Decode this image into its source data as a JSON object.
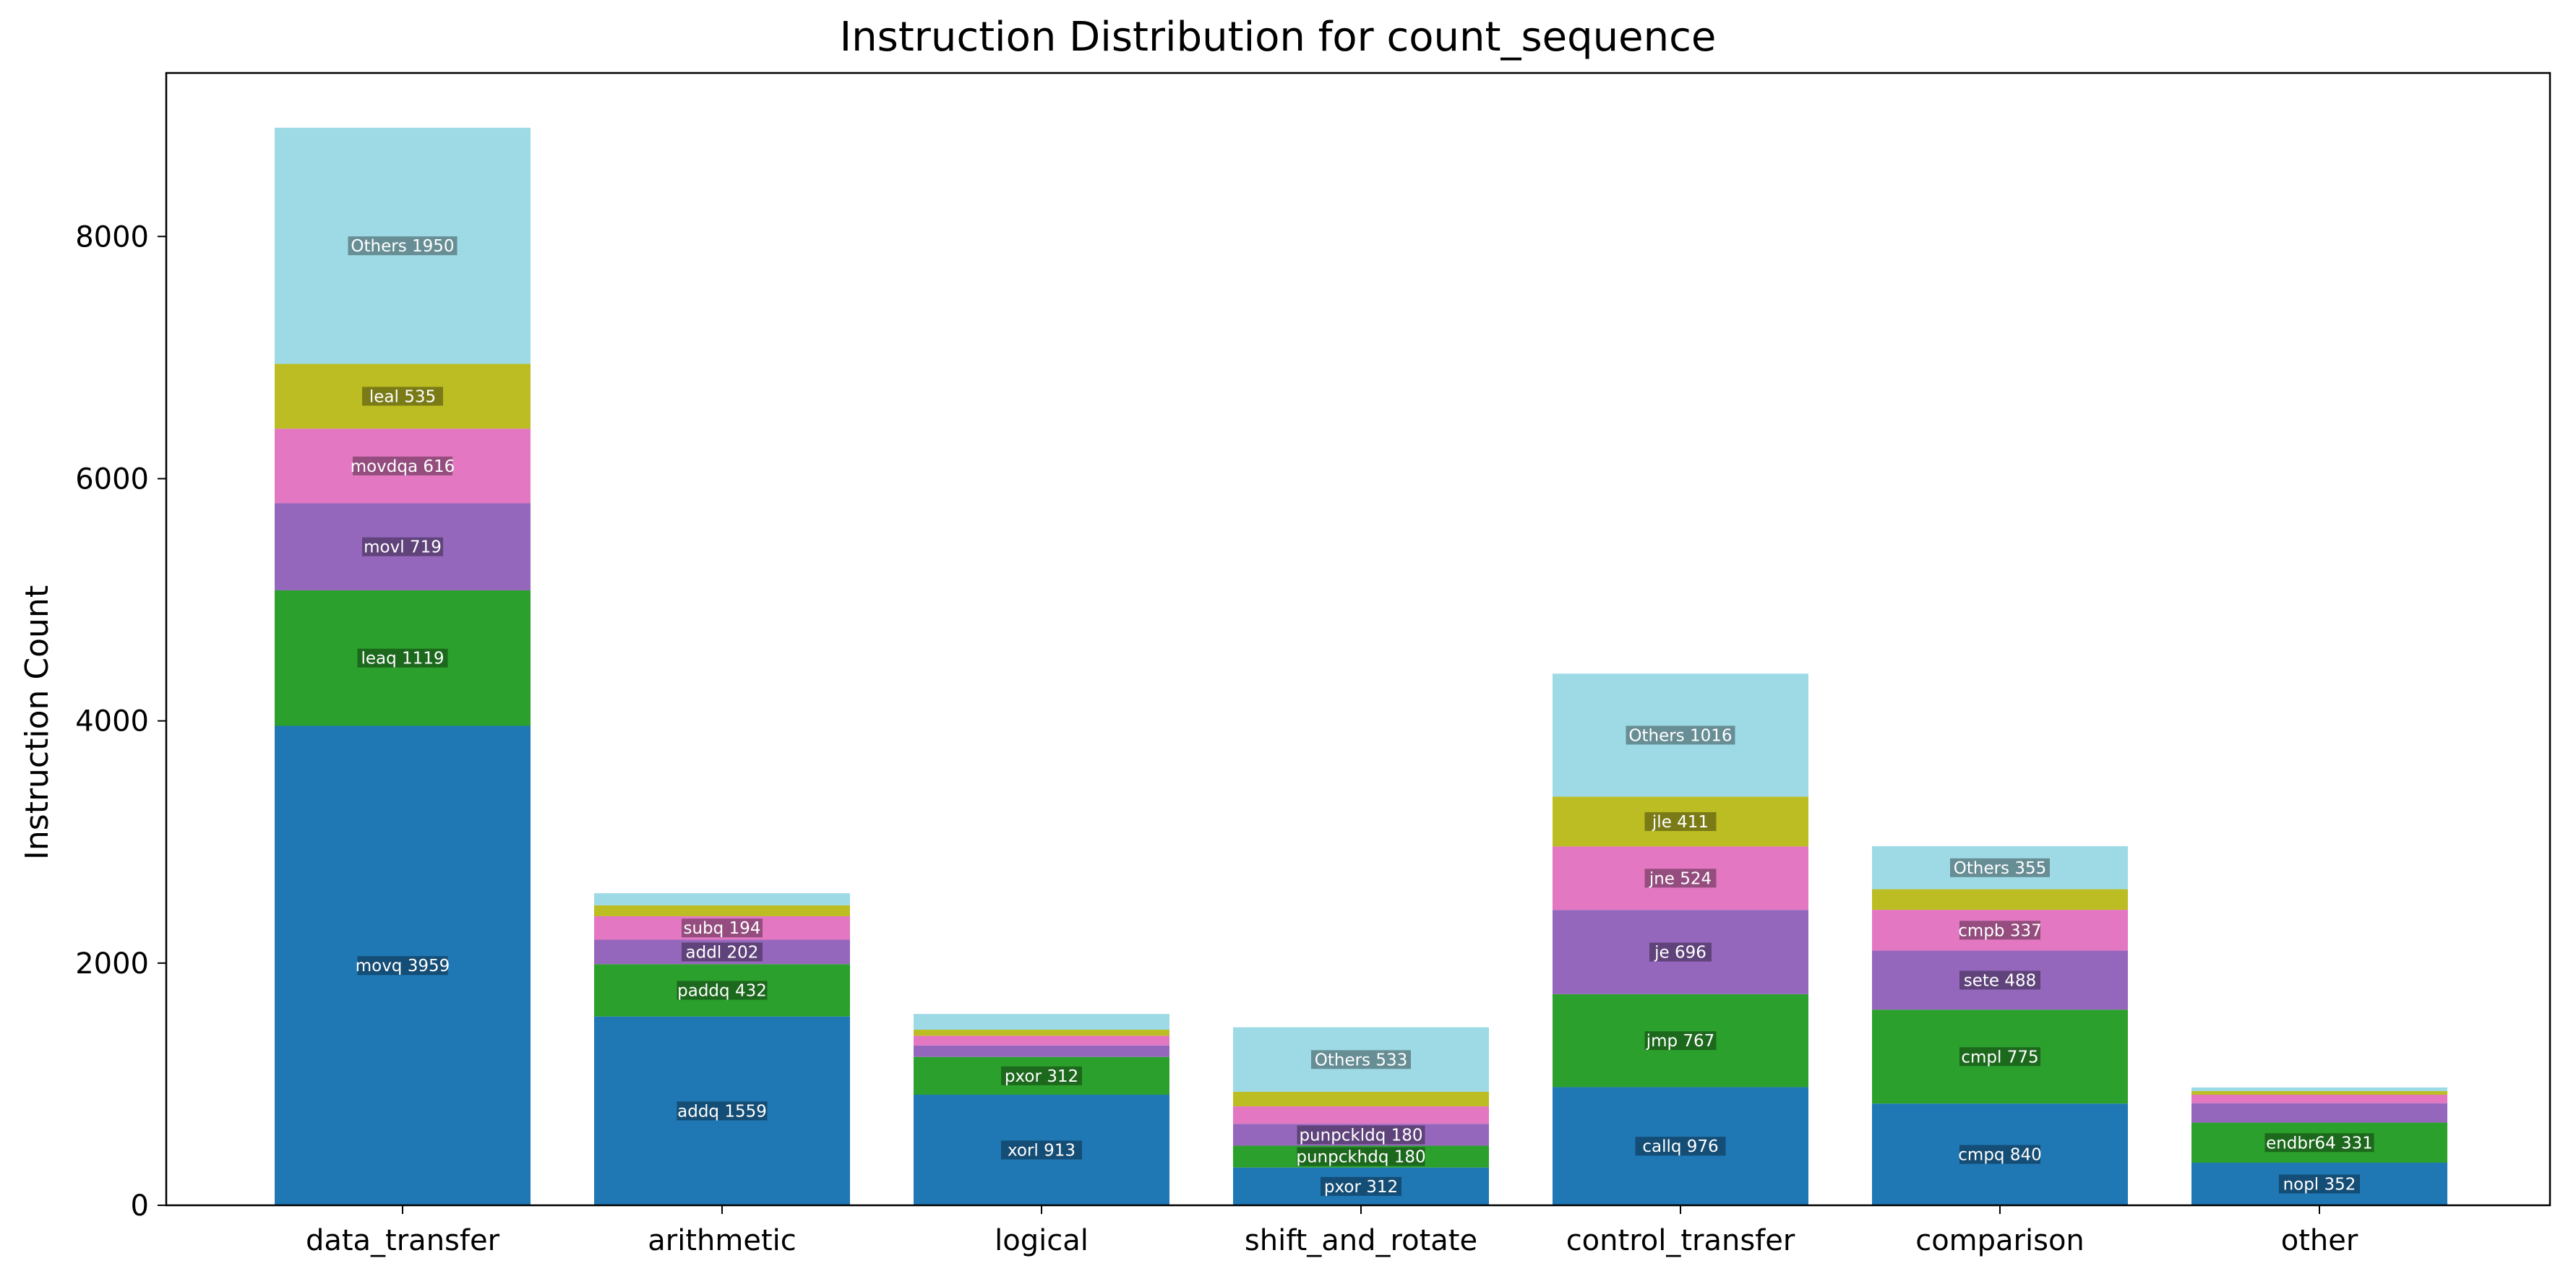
{
  "chart_data": {
    "type": "bar",
    "stacked": true,
    "title": "Instruction Distribution for count_sequence",
    "xlabel": "",
    "ylabel": "Instruction Count",
    "ylim": [
      0,
      9350
    ],
    "yticks": [
      0,
      2000,
      4000,
      6000,
      8000
    ],
    "grid": false,
    "legend": "none",
    "layer_colors": [
      "#1f77b4",
      "#2ca02c",
      "#9467bd",
      "#e377c2",
      "#bcbd22",
      "#9edae5"
    ],
    "categories": [
      "data_transfer",
      "arithmetic",
      "logical",
      "shift_and_rotate",
      "control_transfer",
      "comparison",
      "other"
    ],
    "stacks": [
      {
        "category": "data_transfer",
        "segments": [
          {
            "label": "movq 3959",
            "value": 3959
          },
          {
            "label": "leaq 1119",
            "value": 1119
          },
          {
            "label": "movl 719",
            "value": 719
          },
          {
            "label": "movdqa 616",
            "value": 616
          },
          {
            "label": "leal 535",
            "value": 535
          },
          {
            "label": "Others 1950",
            "value": 1950
          }
        ]
      },
      {
        "category": "arithmetic",
        "segments": [
          {
            "label": "addq 1559",
            "value": 1559
          },
          {
            "label": "paddq 432",
            "value": 432
          },
          {
            "label": "addl 202",
            "value": 202
          },
          {
            "label": "subq 194",
            "value": 194
          },
          {
            "label": "",
            "value": 90
          },
          {
            "label": "",
            "value": 100
          }
        ]
      },
      {
        "category": "logical",
        "segments": [
          {
            "label": "xorl 913",
            "value": 913
          },
          {
            "label": "pxor 312",
            "value": 312
          },
          {
            "label": "",
            "value": 95
          },
          {
            "label": "",
            "value": 80
          },
          {
            "label": "",
            "value": 50
          },
          {
            "label": "",
            "value": 130
          }
        ]
      },
      {
        "category": "shift_and_rotate",
        "segments": [
          {
            "label": "pxor 312",
            "value": 312
          },
          {
            "label": "punpckhdq 180",
            "value": 180
          },
          {
            "label": "punpckldq 180",
            "value": 180
          },
          {
            "label": "",
            "value": 145
          },
          {
            "label": "",
            "value": 120
          },
          {
            "label": "Others 533",
            "value": 533
          }
        ]
      },
      {
        "category": "control_transfer",
        "segments": [
          {
            "label": "callq 976",
            "value": 976
          },
          {
            "label": "jmp 767",
            "value": 767
          },
          {
            "label": "je 696",
            "value": 696
          },
          {
            "label": "jne 524",
            "value": 524
          },
          {
            "label": "jle 411",
            "value": 411
          },
          {
            "label": "Others 1016",
            "value": 1016
          }
        ]
      },
      {
        "category": "comparison",
        "segments": [
          {
            "label": "cmpq 840",
            "value": 840
          },
          {
            "label": "cmpl 775",
            "value": 775
          },
          {
            "label": "sete 488",
            "value": 488
          },
          {
            "label": "cmpb 337",
            "value": 337
          },
          {
            "label": "",
            "value": 170
          },
          {
            "label": "Others 355",
            "value": 355
          }
        ]
      },
      {
        "category": "other",
        "segments": [
          {
            "label": "nopl 352",
            "value": 352
          },
          {
            "label": "endbr64 331",
            "value": 331
          },
          {
            "label": "",
            "value": 160
          },
          {
            "label": "",
            "value": 70
          },
          {
            "label": "",
            "value": 30
          },
          {
            "label": "",
            "value": 30
          }
        ]
      }
    ]
  }
}
